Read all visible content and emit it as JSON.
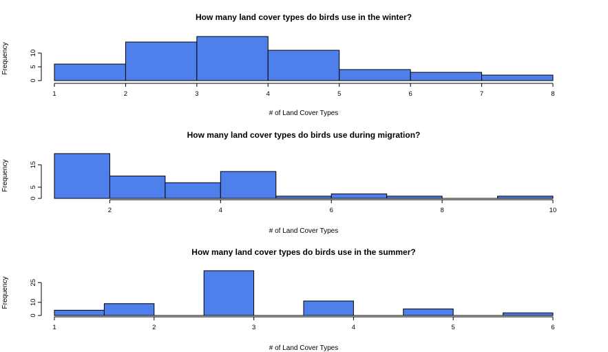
{
  "colors": {
    "bar_fill": "#4f7fea",
    "bar_stroke": "#000000",
    "background": "#ffffff"
  },
  "chart_data": [
    {
      "type": "bar",
      "title": "How many land cover types do birds use in the winter?",
      "xlabel": "# of Land Cover Types",
      "ylabel": "Frequency",
      "bins": [
        [
          1,
          2
        ],
        [
          2,
          3
        ],
        [
          3,
          4
        ],
        [
          4,
          5
        ],
        [
          5,
          6
        ],
        [
          6,
          7
        ],
        [
          7,
          8
        ]
      ],
      "values": [
        6,
        14,
        16,
        11,
        4,
        3,
        2
      ],
      "xlim": [
        1,
        8
      ],
      "ylim": [
        0,
        16
      ],
      "xticks": [
        1,
        2,
        3,
        4,
        5,
        6,
        7,
        8
      ],
      "xtick_labels": [
        "1",
        "2",
        "3",
        "4",
        "5",
        "6",
        "7",
        "8"
      ],
      "yticks": [
        0,
        5,
        10
      ],
      "ytick_labels": [
        "0",
        "5",
        "10"
      ],
      "grid": false
    },
    {
      "type": "bar",
      "title": "How many land cover types do birds use during migration?",
      "xlabel": "# of Land Cover Types",
      "ylabel": "Frequency",
      "bins": [
        [
          1,
          2
        ],
        [
          2,
          3
        ],
        [
          3,
          4
        ],
        [
          4,
          5
        ],
        [
          5,
          6
        ],
        [
          6,
          7
        ],
        [
          7,
          8
        ],
        [
          8,
          9
        ],
        [
          9,
          10
        ]
      ],
      "values": [
        20,
        10,
        7,
        12,
        1,
        2,
        1,
        0,
        1
      ],
      "xlim": [
        1,
        10
      ],
      "ylim": [
        0,
        20
      ],
      "xticks": [
        2,
        4,
        6,
        8,
        10
      ],
      "xtick_labels": [
        "2",
        "4",
        "6",
        "8",
        "10"
      ],
      "yticks": [
        0,
        5,
        15
      ],
      "ytick_labels": [
        "0",
        "5",
        "15"
      ],
      "grid": false
    },
    {
      "type": "bar",
      "title": "How many land cover types do birds use in the summer?",
      "xlabel": "# of Land Cover Types",
      "ylabel": "Frequency",
      "bins": [
        [
          1,
          1.5
        ],
        [
          1.5,
          2
        ],
        [
          2,
          2.5
        ],
        [
          2.5,
          3
        ],
        [
          3,
          3.5
        ],
        [
          3.5,
          4
        ],
        [
          4,
          4.5
        ],
        [
          4.5,
          5
        ],
        [
          5,
          5.5
        ],
        [
          5.5,
          6
        ]
      ],
      "values": [
        4,
        9,
        0,
        34,
        0,
        11,
        0,
        5,
        0,
        2
      ],
      "xlim": [
        1,
        6
      ],
      "ylim": [
        0,
        34
      ],
      "xticks": [
        1,
        2,
        3,
        4,
        5,
        6
      ],
      "xtick_labels": [
        "1",
        "2",
        "3",
        "4",
        "5",
        "6"
      ],
      "yticks": [
        0,
        10,
        25
      ],
      "ytick_labels": [
        "0",
        "10",
        "25"
      ],
      "grid": false
    }
  ]
}
